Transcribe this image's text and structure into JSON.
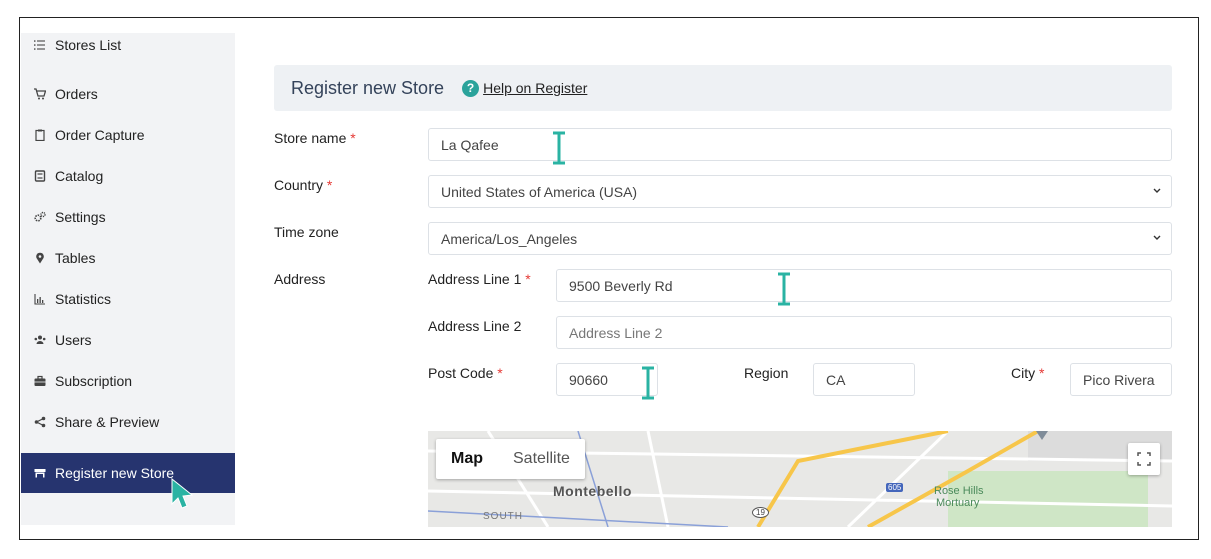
{
  "sidebar": {
    "items": [
      {
        "label": "Stores List",
        "icon": "list-icon"
      },
      {
        "label": "Orders",
        "icon": "cart-icon"
      },
      {
        "label": "Order Capture",
        "icon": "clipboard-icon"
      },
      {
        "label": "Catalog",
        "icon": "book-icon"
      },
      {
        "label": "Settings",
        "icon": "gears-icon"
      },
      {
        "label": "Tables",
        "icon": "map-pin-icon"
      },
      {
        "label": "Statistics",
        "icon": "bar-chart-icon"
      },
      {
        "label": "Users",
        "icon": "users-icon"
      },
      {
        "label": "Subscription",
        "icon": "briefcase-icon"
      },
      {
        "label": "Share & Preview",
        "icon": "share-icon"
      },
      {
        "label": "Register new Store",
        "icon": "store-icon",
        "active": true
      }
    ]
  },
  "header": {
    "title": "Register new Store",
    "help_label": "Help on Register",
    "help_icon": "?"
  },
  "form": {
    "store_name": {
      "label": "Store name",
      "required": "*",
      "value": "La Qafee"
    },
    "country": {
      "label": "Country",
      "required": "*",
      "value": "United States of America (USA)"
    },
    "time_zone": {
      "label": "Time zone",
      "value": "America/Los_Angeles"
    },
    "address": {
      "label": "Address",
      "line1": {
        "label": "Address Line 1",
        "required": "*",
        "value": "9500 Beverly Rd"
      },
      "line2": {
        "label": "Address Line 2",
        "placeholder": "Address Line 2"
      },
      "post_code": {
        "label": "Post Code",
        "required": "*",
        "value": "90660"
      },
      "region": {
        "label": "Region",
        "value": "CA"
      },
      "city": {
        "label": "City",
        "required": "*",
        "value": "Pico Rivera"
      }
    }
  },
  "map": {
    "tabs": [
      "Map",
      "Satellite"
    ],
    "labels": {
      "montebello": "Montebello",
      "south": "SOUTH",
      "rose_hills": "Rose Hills",
      "mortuary": "Mortuary",
      "highway_605": "605",
      "route_19": "19"
    }
  },
  "colors": {
    "accent": "#26346f",
    "teal": "#2aa39b",
    "required": "#e53935"
  }
}
